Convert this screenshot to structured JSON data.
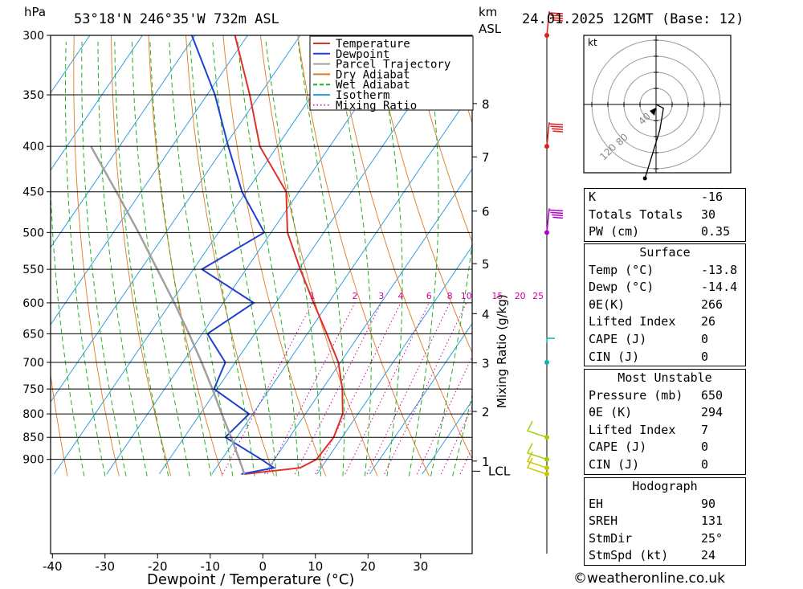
{
  "header": {
    "units_p": "hPa",
    "location": "53°18'N  246°35'W  732m  ASL",
    "units_km": "km",
    "units_asl": "ASL",
    "datetime": "24.01.2025  12GMT  (Base: 12)"
  },
  "chart_data": {
    "type": "line",
    "title": "53°18'N  246°35'W  732m  ASL",
    "xlabel": "Dewpoint / Temperature (°C)",
    "ylabel": "hPa",
    "xlim": [
      -42,
      40
    ],
    "ylim": [
      935,
      300
    ],
    "y_scale": "log",
    "x_ticks": [
      -40,
      -30,
      -20,
      -10,
      0,
      10,
      20,
      30
    ],
    "x_tick_labels": [
      "-40",
      "-30",
      "-20",
      "-10",
      "0",
      "10",
      "20",
      "30"
    ],
    "pressure_levels": [
      300,
      350,
      400,
      450,
      500,
      550,
      600,
      650,
      700,
      750,
      800,
      850,
      900
    ],
    "km_axis": [
      {
        "km": "8",
        "p": 358
      },
      {
        "km": "7",
        "p": 411
      },
      {
        "km": "6",
        "p": 473
      },
      {
        "km": "5",
        "p": 542
      },
      {
        "km": "4",
        "p": 617
      },
      {
        "km": "3",
        "p": 701
      },
      {
        "km": "2",
        "p": 795
      },
      {
        "km": "1",
        "p": 904
      }
    ],
    "lcl_label": "LCL",
    "lcl_p": 928,
    "mixing_ratio_label": "Mixing Ratio (g/kg)",
    "mixing_ratios": [
      "1",
      "2",
      "3",
      "4",
      "6",
      "8",
      "10",
      "15",
      "20",
      "25"
    ],
    "legend": {
      "position": "top-right",
      "items": [
        {
          "name": "Temperature",
          "color": "#e0302a",
          "style": "solid"
        },
        {
          "name": "Dewpoint",
          "color": "#2040d0",
          "style": "solid"
        },
        {
          "name": "Parcel Trajectory",
          "color": "#a0a0a0",
          "style": "solid"
        },
        {
          "name": "Dry Adiabat",
          "color": "#e07820",
          "style": "solid"
        },
        {
          "name": "Wet Adiabat",
          "color": "#20b020",
          "style": "dashed"
        },
        {
          "name": "Isotherm",
          "color": "#30a0e0",
          "style": "solid"
        },
        {
          "name": "Mixing Ratio",
          "color": "#d000a0",
          "style": "dotted"
        }
      ]
    },
    "series": [
      {
        "name": "Temperature",
        "color": "#e0302a",
        "points": [
          [
            935,
            -13.8
          ],
          [
            920,
            -4
          ],
          [
            900,
            -2
          ],
          [
            850,
            -1.6
          ],
          [
            800,
            -2.9
          ],
          [
            750,
            -6.2
          ],
          [
            700,
            -10.4
          ],
          [
            650,
            -16.3
          ],
          [
            600,
            -22.8
          ],
          [
            550,
            -29.7
          ],
          [
            500,
            -36.9
          ],
          [
            450,
            -42.4
          ],
          [
            400,
            -53.3
          ],
          [
            350,
            -61.9
          ],
          [
            300,
            -72.4
          ]
        ]
      },
      {
        "name": "Dewpoint",
        "color": "#2040d0",
        "points": [
          [
            935,
            -14.4
          ],
          [
            920,
            -9
          ],
          [
            900,
            -12.5
          ],
          [
            850,
            -22.2
          ],
          [
            800,
            -20.7
          ],
          [
            750,
            -30.6
          ],
          [
            700,
            -31.9
          ],
          [
            650,
            -39
          ],
          [
            600,
            -34.2
          ],
          [
            550,
            -48.4
          ],
          [
            500,
            -41.3
          ],
          [
            450,
            -50.8
          ],
          [
            400,
            -59.3
          ],
          [
            350,
            -68.5
          ],
          [
            300,
            -80.6
          ]
        ]
      },
      {
        "name": "Parcel Trajectory",
        "color": "#a0a0a0",
        "points": [
          [
            935,
            -13.8
          ],
          [
            900,
            -16.7
          ],
          [
            850,
            -21.1
          ],
          [
            800,
            -25.9
          ],
          [
            750,
            -30.9
          ],
          [
            700,
            -36.4
          ],
          [
            650,
            -42.5
          ],
          [
            600,
            -49.3
          ],
          [
            550,
            -56.9
          ],
          [
            500,
            -65.2
          ],
          [
            450,
            -74.7
          ],
          [
            400,
            -85.4
          ]
        ]
      }
    ],
    "wind_barbs": [
      {
        "p": 935,
        "color": "#c8c800"
      },
      {
        "p": 920,
        "color": "#c8c800"
      },
      {
        "p": 900,
        "color": "#a0d000"
      },
      {
        "p": 850,
        "color": "#a0d000"
      },
      {
        "p": 700,
        "color": "#10b0b0"
      },
      {
        "p": 500,
        "color": "#b000d0"
      },
      {
        "p": 400,
        "color": "#e02020"
      },
      {
        "p": 300,
        "color": "#e02020"
      }
    ],
    "hodograph": {
      "unit_label": "kt",
      "ring_labels": [
        "40",
        "80",
        "120"
      ],
      "points": [
        [
          0,
          0
        ],
        [
          4,
          -2
        ],
        [
          2,
          -14
        ],
        [
          -6,
          -40
        ]
      ]
    }
  },
  "indices": {
    "rows": [
      {
        "key": "K",
        "value": "-16"
      },
      {
        "key": "Totals Totals",
        "value": "30"
      },
      {
        "key": "PW (cm)",
        "value": "0.35"
      }
    ]
  },
  "surface": {
    "title": "Surface",
    "rows": [
      {
        "key": "Temp (°C)",
        "value": "-13.8"
      },
      {
        "key": "Dewp (°C)",
        "value": "-14.4"
      },
      {
        "key": "θE(K)",
        "value": "266"
      },
      {
        "key": "Lifted Index",
        "value": "26"
      },
      {
        "key": "CAPE (J)",
        "value": "0"
      },
      {
        "key": "CIN (J)",
        "value": "0"
      }
    ]
  },
  "most_unstable": {
    "title": "Most Unstable",
    "rows": [
      {
        "key": "Pressure (mb)",
        "value": "650"
      },
      {
        "key": "θE (K)",
        "value": "294"
      },
      {
        "key": "Lifted Index",
        "value": "7"
      },
      {
        "key": "CAPE (J)",
        "value": "0"
      },
      {
        "key": "CIN (J)",
        "value": "0"
      }
    ]
  },
  "hodograph_table": {
    "title": "Hodograph",
    "rows": [
      {
        "key": "EH",
        "value": "90"
      },
      {
        "key": "SREH",
        "value": "131"
      },
      {
        "key": "StmDir",
        "value": "25°"
      },
      {
        "key": "StmSpd (kt)",
        "value": "24"
      }
    ]
  },
  "footer": {
    "credit": "©weatheronline.co.uk"
  }
}
